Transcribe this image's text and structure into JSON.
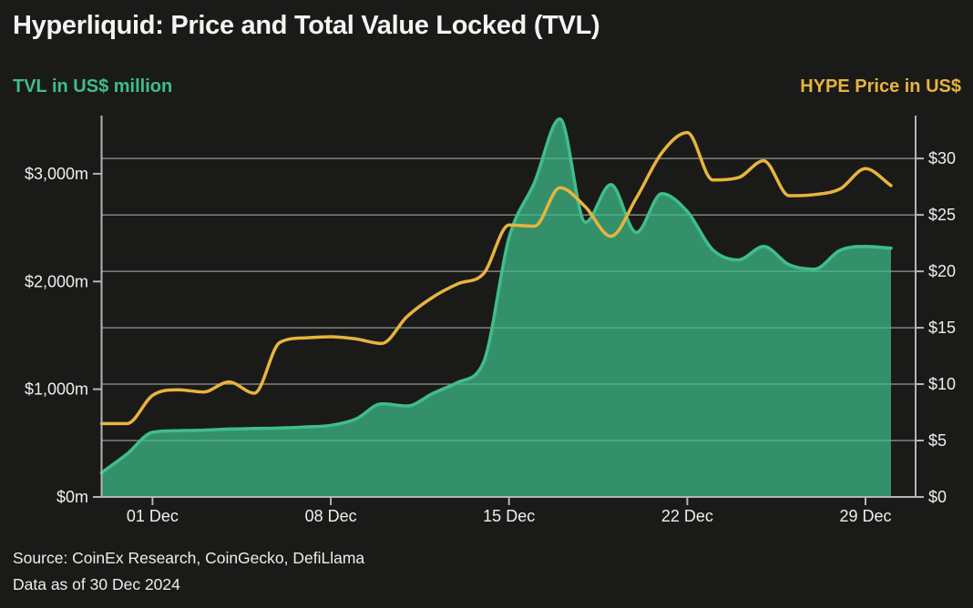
{
  "title": "Hyperliquid: Price and Total Value Locked (TVL)",
  "left_axis_label": "TVL in US$ million",
  "right_axis_label": "HYPE Price in US$",
  "source": {
    "line1": "Source: CoinEx Research, CoinGecko, DefiLlama",
    "line2": "Data as of 30 Dec 2024"
  },
  "colors": {
    "background": "#1a1a19",
    "tvl_green": "#3fbe8a",
    "tvl_fill_opacity": 0.72,
    "price_gold": "#e8b43e",
    "grid": "#979797",
    "axis": "#b5b5b5",
    "tick_text": "#f0efed",
    "title_text": "#f4f4f2"
  },
  "chart_data": {
    "type": "area",
    "title": "Hyperliquid: Price and Total Value Locked (TVL)",
    "x": [
      "29 Nov",
      "30 Nov",
      "01 Dec",
      "02 Dec",
      "03 Dec",
      "04 Dec",
      "05 Dec",
      "06 Dec",
      "07 Dec",
      "08 Dec",
      "09 Dec",
      "10 Dec",
      "11 Dec",
      "12 Dec",
      "13 Dec",
      "14 Dec",
      "15 Dec",
      "16 Dec",
      "17 Dec",
      "18 Dec",
      "19 Dec",
      "20 Dec",
      "21 Dec",
      "22 Dec",
      "23 Dec",
      "24 Dec",
      "25 Dec",
      "26 Dec",
      "27 Dec",
      "28 Dec",
      "29 Dec",
      "30 Dec"
    ],
    "x_tick_labels": [
      "01 Dec",
      "08 Dec",
      "15 Dec",
      "22 Dec",
      "29 Dec"
    ],
    "x_tick_indices": [
      2,
      9,
      16,
      23,
      30
    ],
    "series": [
      {
        "name": "TVL in US$ million",
        "type": "area",
        "axis": "left",
        "color": "#3fbe8a",
        "values": [
          225,
          400,
          600,
          615,
          620,
          630,
          635,
          640,
          650,
          665,
          725,
          865,
          845,
          960,
          1065,
          1250,
          2405,
          2920,
          3510,
          2550,
          2900,
          2455,
          2815,
          2650,
          2295,
          2200,
          2325,
          2155,
          2115,
          2290,
          2325,
          2310
        ]
      },
      {
        "name": "HYPE Price in US$",
        "type": "line",
        "axis": "right",
        "color": "#e8b43e",
        "values": [
          6.5,
          6.5,
          9.0,
          9.5,
          9.3,
          10.2,
          9.2,
          13.7,
          14.1,
          14.2,
          14.0,
          13.6,
          16.0,
          17.7,
          18.9,
          19.8,
          24.1,
          24.0,
          27.4,
          25.7,
          23.1,
          26.5,
          30.5,
          32.3,
          28.1,
          28.3,
          29.8,
          26.7,
          26.8,
          27.3,
          29.1,
          27.6
        ]
      }
    ],
    "left_axis": {
      "title": "TVL in US$ million",
      "min": 0,
      "max": 3540,
      "tick_values": [
        0,
        1000,
        2000,
        3000
      ],
      "tick_labels": [
        "$0m",
        "$1,000m",
        "$2,000m",
        "$3,000m"
      ]
    },
    "right_axis": {
      "title": "HYPE Price in US$",
      "min": 0,
      "max": 33.8,
      "tick_values": [
        0,
        5,
        10,
        15,
        20,
        25,
        30
      ],
      "tick_labels": [
        "$0",
        "$5",
        "$10",
        "$15",
        "$20",
        "$25",
        "$30"
      ]
    },
    "grid": {
      "horizontal": true,
      "vertical": false,
      "follows": "right_axis"
    },
    "legend_position": "none"
  }
}
